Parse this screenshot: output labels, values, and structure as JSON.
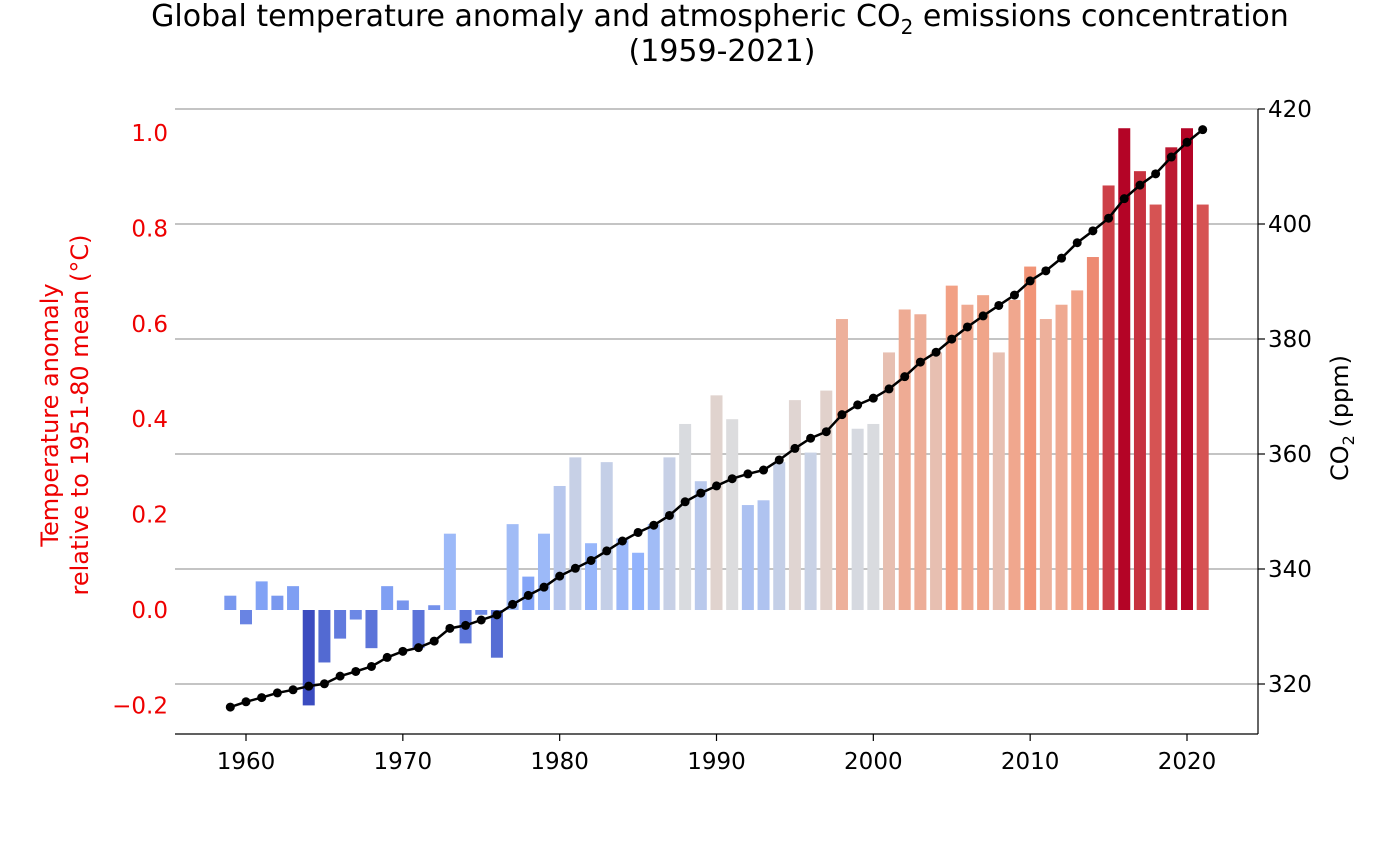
{
  "chart_data": {
    "type": "bar+line",
    "title_line1": "Global temperature anomaly and atmospheric CO",
    "title_sub": "2",
    "title_line1_end": " emissions concentration",
    "title_line2": "(1959-2021)",
    "ylabel_left_line1": "Temperature anomaly",
    "ylabel_left_line2": "relative to 1951-80 mean (°C)",
    "ylabel_right_pre": "CO",
    "ylabel_right_sub": "2",
    "ylabel_right_post": " (ppm)",
    "left_ylim": [
      -0.27,
      1.05
    ],
    "right_ylim": [
      311,
      420
    ],
    "left_ticks": [
      "−0.2",
      "0.0",
      "0.2",
      "0.4",
      "0.6",
      "0.8",
      "1.0"
    ],
    "left_tick_values": [
      -0.2,
      0,
      0.2,
      0.4,
      0.6,
      0.8,
      1.0
    ],
    "right_ticks": [
      "320",
      "340",
      "360",
      "380",
      "400",
      "420"
    ],
    "right_tick_values": [
      320,
      340,
      360,
      380,
      400,
      420
    ],
    "x_ticks": [
      "1960",
      "1970",
      "1980",
      "1990",
      "2000",
      "2010",
      "2020"
    ],
    "x_tick_values": [
      1960,
      1970,
      1980,
      1990,
      2000,
      2010,
      2020
    ],
    "grid": "horizontal, at right-axis ticks",
    "colormap": "coolwarm",
    "left_axis_color": "#ee0000",
    "line_color": "#000000",
    "years": [
      1959,
      1960,
      1961,
      1962,
      1963,
      1964,
      1965,
      1966,
      1967,
      1968,
      1969,
      1970,
      1971,
      1972,
      1973,
      1974,
      1975,
      1976,
      1977,
      1978,
      1979,
      1980,
      1981,
      1982,
      1983,
      1984,
      1985,
      1986,
      1987,
      1988,
      1989,
      1990,
      1991,
      1992,
      1993,
      1994,
      1995,
      1996,
      1997,
      1998,
      1999,
      2000,
      2001,
      2002,
      2003,
      2004,
      2005,
      2006,
      2007,
      2008,
      2009,
      2010,
      2011,
      2012,
      2013,
      2014,
      2015,
      2016,
      2017,
      2018,
      2019,
      2020,
      2021
    ],
    "temperature_anomaly": [
      0.03,
      -0.03,
      0.06,
      0.03,
      0.05,
      -0.2,
      -0.11,
      -0.06,
      -0.02,
      -0.08,
      0.05,
      0.02,
      -0.08,
      0.01,
      0.16,
      -0.07,
      -0.01,
      -0.1,
      0.18,
      0.07,
      0.16,
      0.26,
      0.32,
      0.14,
      0.31,
      0.15,
      0.12,
      0.18,
      0.32,
      0.39,
      0.27,
      0.45,
      0.4,
      0.22,
      0.23,
      0.31,
      0.44,
      0.33,
      0.46,
      0.61,
      0.38,
      0.39,
      0.54,
      0.63,
      0.62,
      0.54,
      0.68,
      0.64,
      0.66,
      0.54,
      0.65,
      0.72,
      0.61,
      0.64,
      0.67,
      0.74,
      0.89,
      1.01,
      0.92,
      0.85,
      0.97,
      1.01,
      0.85
    ],
    "co2_ppm": [
      315.98,
      316.91,
      317.64,
      318.45,
      318.99,
      319.62,
      320.04,
      321.37,
      322.18,
      323.05,
      324.62,
      325.68,
      326.32,
      327.46,
      329.68,
      330.19,
      331.13,
      332.03,
      333.84,
      335.41,
      336.84,
      338.76,
      340.12,
      341.48,
      343.15,
      344.87,
      346.35,
      347.61,
      349.31,
      351.69,
      353.2,
      354.45,
      355.7,
      356.54,
      357.21,
      358.96,
      360.97,
      362.74,
      363.88,
      366.84,
      368.54,
      369.71,
      371.32,
      373.45,
      375.98,
      377.7,
      379.98,
      382.09,
      384.02,
      385.83,
      387.64,
      390.1,
      391.85,
      394.06,
      396.74,
      398.81,
      401.01,
      404.41,
      406.76,
      408.72,
      411.65,
      414.21,
      416.41
    ]
  }
}
